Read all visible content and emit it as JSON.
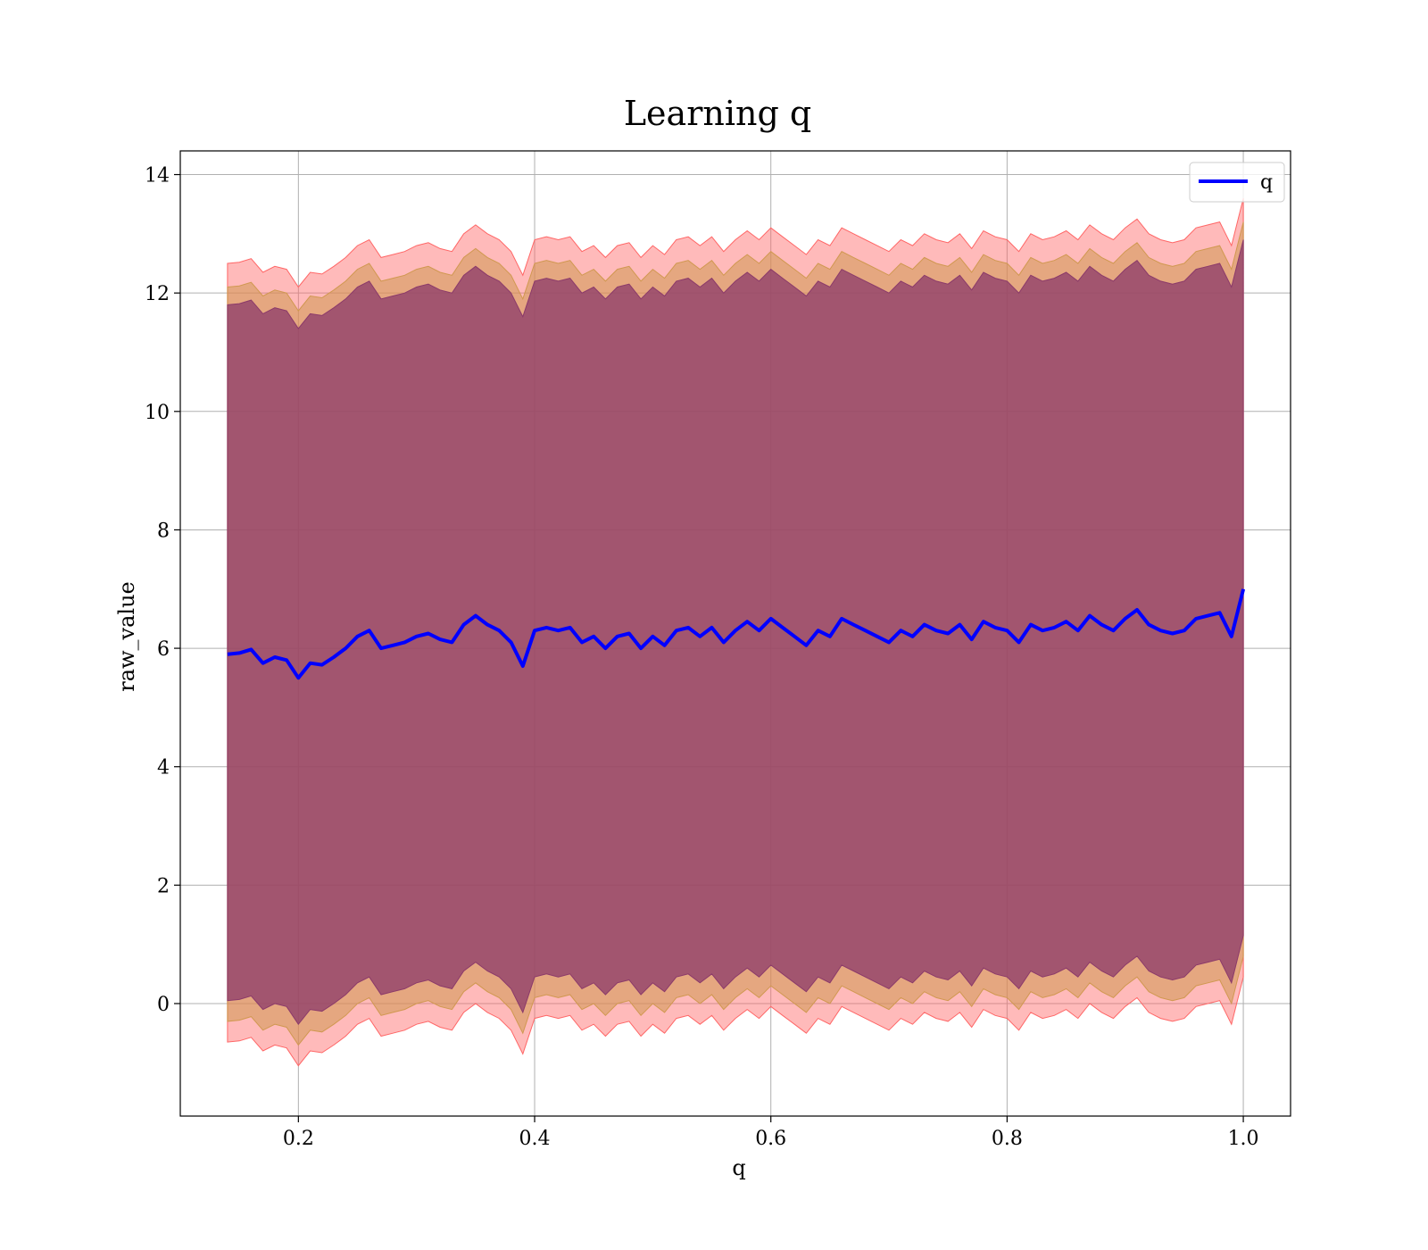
{
  "chart_data": {
    "type": "line",
    "title": "Learning q",
    "xlabel": "q",
    "ylabel": "raw_value",
    "xlim": [
      0.1,
      1.04
    ],
    "ylim": [
      -1.9,
      14.4
    ],
    "xticks": [
      0.2,
      0.4,
      0.6,
      0.8,
      1.0
    ],
    "xtick_labels": [
      "0.2",
      "0.4",
      "0.6",
      "0.8",
      "1.0"
    ],
    "yticks": [
      0,
      2,
      4,
      6,
      8,
      10,
      12,
      14
    ],
    "ytick_labels": [
      "0",
      "2",
      "4",
      "6",
      "8",
      "10",
      "12",
      "14"
    ],
    "grid": true,
    "legend": {
      "position": "top-right",
      "entries": [
        {
          "label": "q",
          "color": "#0000ff"
        }
      ]
    },
    "colors": {
      "line": "#0000ff",
      "outer_band": "#ff6666",
      "inner_band": "#8b3a6a",
      "mid_band": "#c49060"
    },
    "series": [
      {
        "name": "q",
        "x": [
          0.14,
          0.15,
          0.16,
          0.17,
          0.18,
          0.19,
          0.2,
          0.21,
          0.22,
          0.23,
          0.24,
          0.25,
          0.26,
          0.27,
          0.28,
          0.29,
          0.3,
          0.31,
          0.32,
          0.33,
          0.34,
          0.35,
          0.36,
          0.37,
          0.38,
          0.39,
          0.4,
          0.41,
          0.42,
          0.43,
          0.44,
          0.45,
          0.46,
          0.47,
          0.48,
          0.49,
          0.5,
          0.51,
          0.52,
          0.53,
          0.54,
          0.55,
          0.56,
          0.57,
          0.58,
          0.59,
          0.6,
          0.61,
          0.62,
          0.63,
          0.64,
          0.65,
          0.66,
          0.67,
          0.68,
          0.69,
          0.7,
          0.71,
          0.72,
          0.73,
          0.74,
          0.75,
          0.76,
          0.77,
          0.78,
          0.79,
          0.8,
          0.81,
          0.82,
          0.83,
          0.84,
          0.85,
          0.86,
          0.87,
          0.88,
          0.89,
          0.9,
          0.91,
          0.92,
          0.93,
          0.94,
          0.95,
          0.96,
          0.97,
          0.98,
          0.99,
          1.0
        ],
        "y": [
          5.9,
          5.92,
          5.98,
          5.75,
          5.85,
          5.8,
          5.5,
          5.75,
          5.72,
          5.85,
          6.0,
          6.2,
          6.3,
          6.0,
          6.05,
          6.1,
          6.2,
          6.25,
          6.15,
          6.1,
          6.4,
          6.55,
          6.4,
          6.3,
          6.1,
          5.7,
          6.3,
          6.35,
          6.3,
          6.35,
          6.1,
          6.2,
          6.0,
          6.2,
          6.25,
          6.0,
          6.2,
          6.05,
          6.3,
          6.35,
          6.2,
          6.35,
          6.1,
          6.3,
          6.45,
          6.3,
          6.5,
          6.35,
          6.2,
          6.05,
          6.3,
          6.2,
          6.5,
          6.4,
          6.3,
          6.2,
          6.1,
          6.3,
          6.2,
          6.4,
          6.3,
          6.25,
          6.4,
          6.15,
          6.45,
          6.35,
          6.3,
          6.1,
          6.4,
          6.3,
          6.35,
          6.45,
          6.3,
          6.55,
          6.4,
          6.3,
          6.5,
          6.65,
          6.4,
          6.3,
          6.25,
          6.3,
          6.5,
          6.55,
          6.6,
          6.2,
          7.0
        ]
      }
    ],
    "bands": [
      {
        "label": "",
        "color": "#ff6666",
        "opacity": 0.45,
        "upper_offset": 6.6,
        "lower_offset": 6.55
      },
      {
        "label": "",
        "color": "#d09850",
        "opacity": 0.55,
        "upper_offset": 6.2,
        "lower_offset": 6.2
      },
      {
        "label": "",
        "color": "#8b3a6a",
        "opacity": 0.75,
        "upper_offset": 5.9,
        "lower_offset": 5.85
      }
    ]
  }
}
